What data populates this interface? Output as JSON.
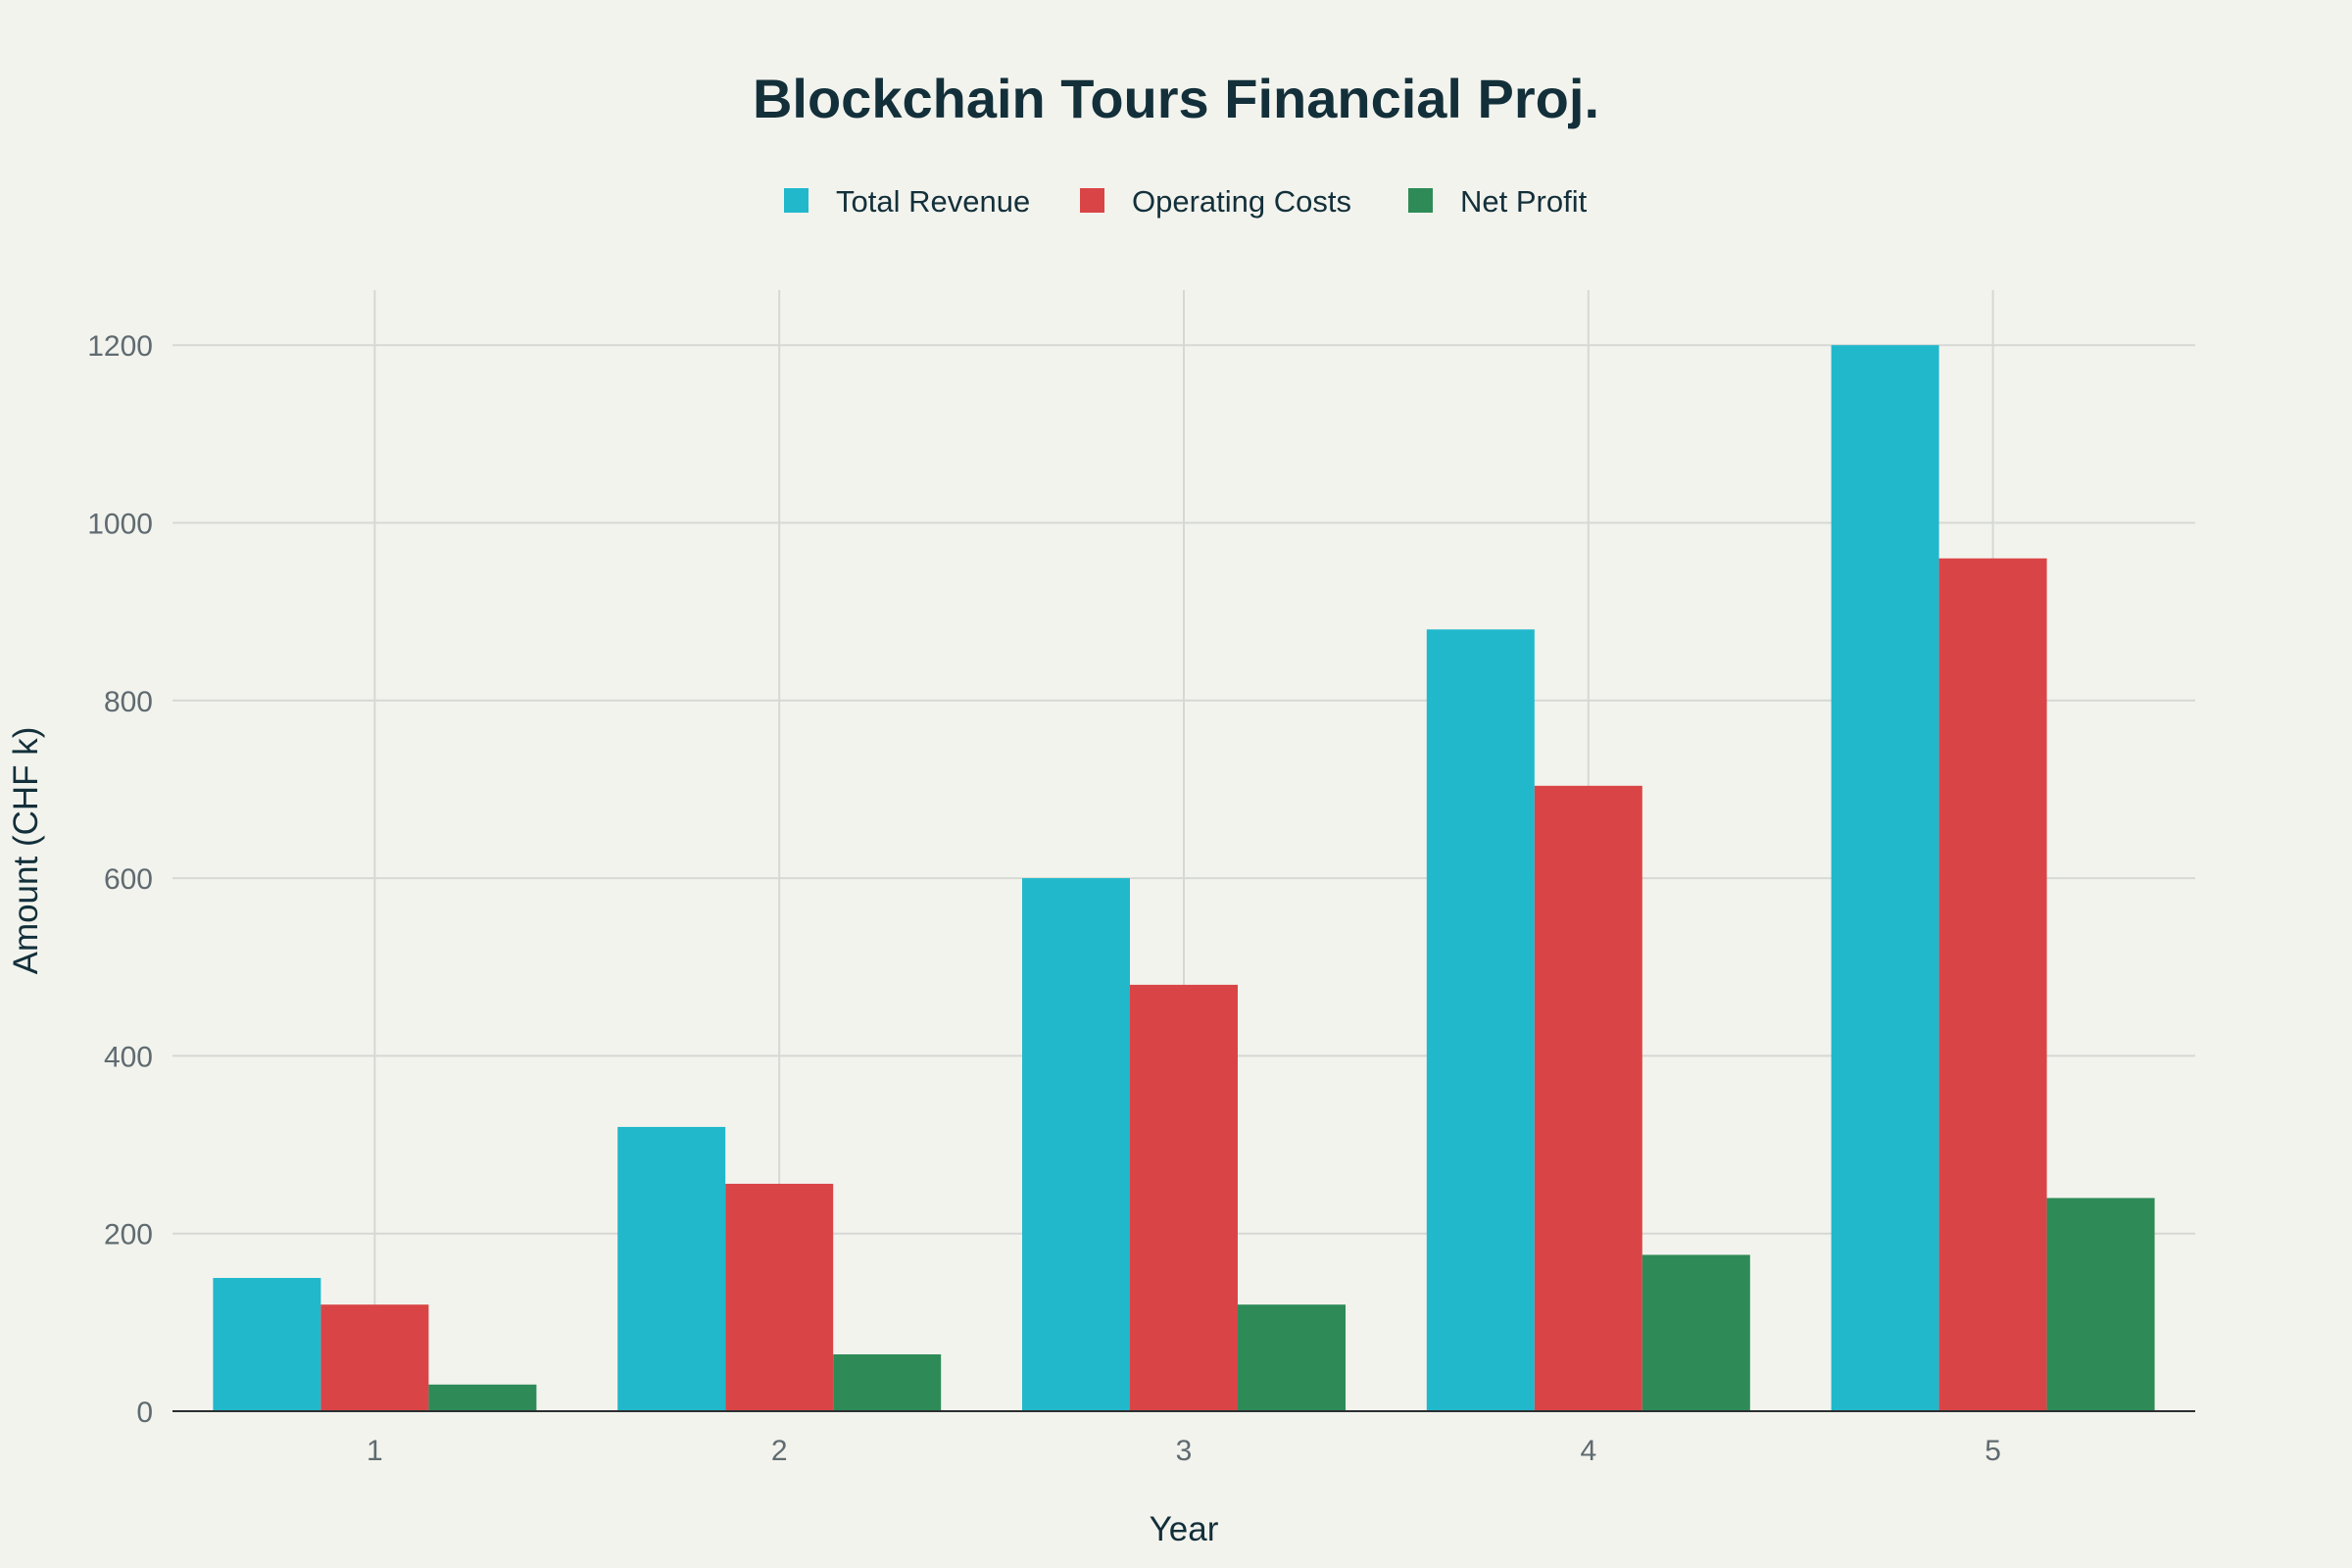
{
  "chart_data": {
    "type": "bar",
    "title": "Blockchain Tours Financial Proj.",
    "xlabel": "Year",
    "ylabel": "Amount (CHF k)",
    "categories": [
      "1",
      "2",
      "3",
      "4",
      "5"
    ],
    "ylim": [
      0,
      1262
    ],
    "yticks": [
      0,
      200,
      400,
      600,
      800,
      1000,
      1200
    ],
    "ytick_labels": [
      "0",
      "200",
      "400",
      "600",
      "800",
      "1000",
      "1200"
    ],
    "grid": true,
    "legend_position": "top-center",
    "series": [
      {
        "name": "Total Revenue",
        "color": "#21b8cc",
        "values": [
          150,
          320,
          600,
          880,
          1200
        ]
      },
      {
        "name": "Operating Costs",
        "color": "#d94546",
        "values": [
          120,
          256,
          480,
          704,
          960
        ]
      },
      {
        "name": "Net Profit",
        "color": "#2e8b57",
        "values": [
          30,
          64,
          120,
          176,
          240
        ]
      }
    ]
  }
}
